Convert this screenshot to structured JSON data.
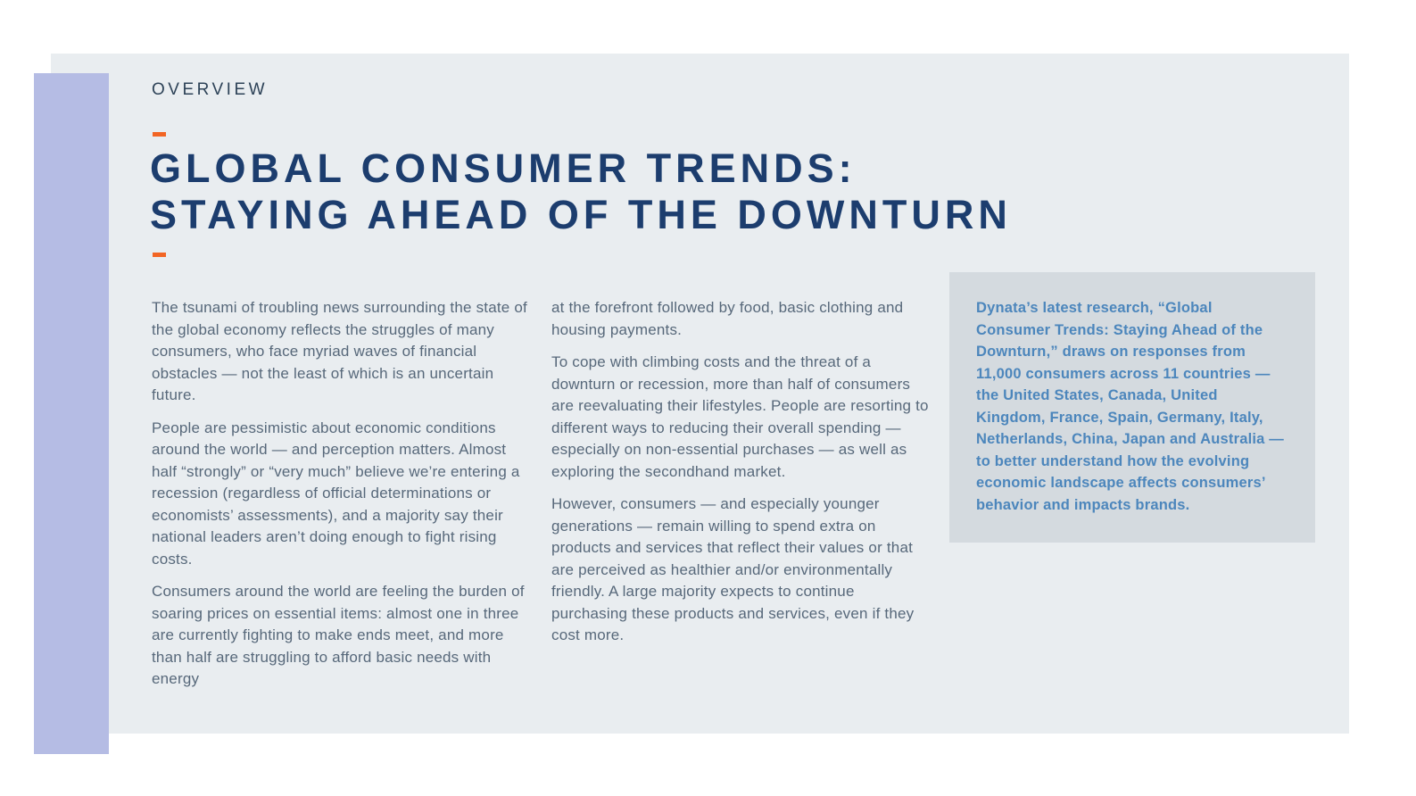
{
  "header": {
    "eyebrow": "OVERVIEW",
    "title_line1": "GLOBAL CONSUMER TRENDS:",
    "title_line2": "STAYING AHEAD OF THE DOWNTURN"
  },
  "body": {
    "column1": [
      "The tsunami of troubling news surrounding the state of the global economy reflects the struggles of many consumers, who face myriad waves of financial obstacles — not the least of which is an uncertain future.",
      "People are pessimistic about economic conditions around the world — and perception matters. Almost half “strongly” or “very much” believe we’re entering a recession (regardless of official determinations or economists’ assessments),  and a majority say their national leaders aren’t doing enough to fight rising costs.",
      "Consumers around the world are feeling the burden of soaring prices on essential items: almost one in three are currently fighting to make ends meet, and more than half are struggling to afford basic needs with energy"
    ],
    "column2": [
      "at the forefront followed by food, basic clothing and housing payments.",
      "To cope with climbing costs and the threat of a downturn or recession, more than half of consumers are reevaluating their lifestyles. People are resorting to different ways to reducing their overall spending — especially on non-essential purchases — as well as exploring the secondhand market.",
      "However, consumers — and especially younger generations — remain willing to spend extra on products and services that reflect their values or that are perceived as healthier and/or environmentally friendly. A large majority expects to continue purchasing these products and services, even if they cost more."
    ]
  },
  "callout": {
    "text": "Dynata’s latest research, “Global Consumer Trends: Staying Ahead of the Downturn,” draws on responses from 11,000 consumers across 11 countries — the United States, Canada, United Kingdom, France, Spain, Germany, Italy, Netherlands, China, Japan and Australia — to better understand how the evolving economic landscape affects consumers’ behavior and impacts brands."
  },
  "colors": {
    "panel_background": "#E9EDF0",
    "left_accent_bar": "#B5BCE4",
    "title_navy": "#1C3D6E",
    "accent_orange": "#F26524",
    "body_text": "#57687A",
    "callout_background": "#D4DADF",
    "callout_text": "#4C86BC"
  }
}
